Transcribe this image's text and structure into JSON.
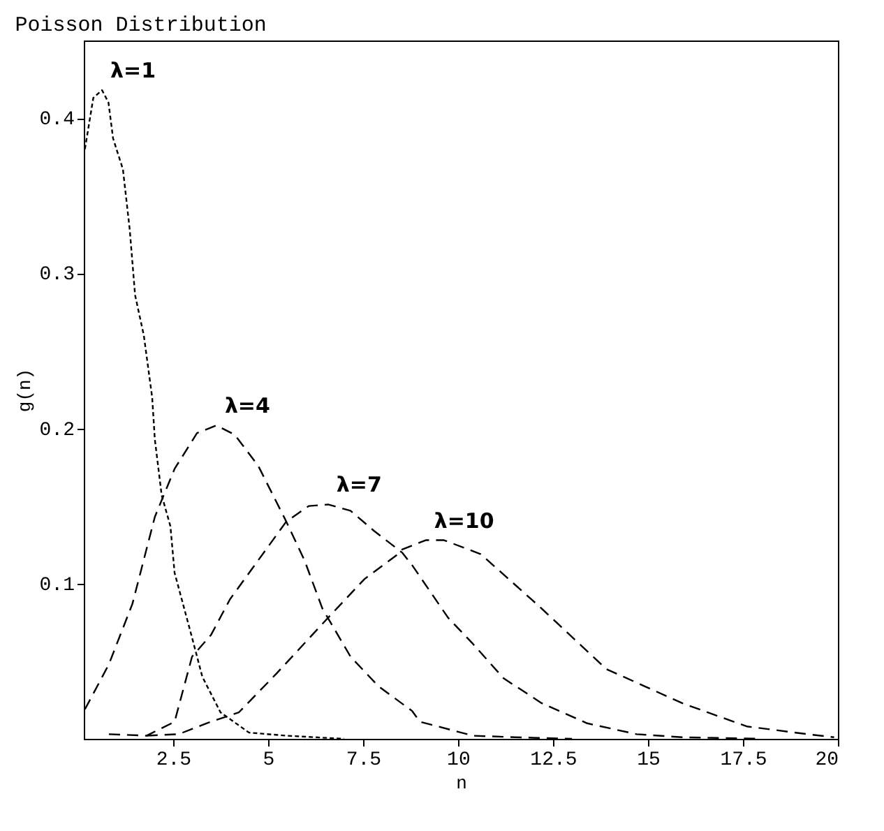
{
  "chart_data": {
    "type": "line",
    "title": "Poisson Distribution",
    "xlabel": "n",
    "ylabel": "g(n)",
    "xlim": [
      0.15,
      20
    ],
    "ylim": [
      0,
      0.45
    ],
    "xticks": [
      2.5,
      5,
      7.5,
      10,
      12.5,
      15,
      17.5,
      20
    ],
    "yticks": [
      0.1,
      0.2,
      0.3,
      0.4
    ],
    "grid": false,
    "legend": false,
    "marker": "none",
    "series": [
      {
        "name": "λ=1",
        "color": "#000000",
        "line_style": "dotted",
        "x": [
          0.18,
          0.4,
          0.63,
          0.8,
          0.92,
          1.18,
          1.36,
          1.5,
          1.73,
          1.95,
          2.02,
          2.2,
          2.43,
          2.54,
          2.98,
          3.27,
          3.75,
          4.5,
          5.5,
          7
        ],
        "values": [
          0.38,
          0.413,
          0.418,
          0.41,
          0.387,
          0.367,
          0.328,
          0.286,
          0.26,
          0.22,
          0.193,
          0.157,
          0.137,
          0.107,
          0.067,
          0.04,
          0.017,
          0.004,
          0.002,
          0
        ]
      },
      {
        "name": "λ=4",
        "color": "#000000",
        "line_style": "dashed",
        "x": [
          0.18,
          0.81,
          1.43,
          2.02,
          2.54,
          3.13,
          3.64,
          4.12,
          4.74,
          5.48,
          5.96,
          6.43,
          7.17,
          7.9,
          8.79,
          9.0,
          10.4,
          11.5,
          13
        ],
        "values": [
          0.019,
          0.048,
          0.087,
          0.143,
          0.174,
          0.197,
          0.202,
          0.196,
          0.176,
          0.14,
          0.115,
          0.084,
          0.053,
          0.034,
          0.018,
          0.011,
          0.002,
          0.001,
          0
        ]
      },
      {
        "name": "λ=7",
        "color": "#000000",
        "line_style": "dashed",
        "x": [
          0.81,
          1.8,
          2.54,
          3.0,
          3.5,
          4.0,
          4.74,
          5.48,
          6.07,
          6.58,
          7.17,
          7.79,
          8.53,
          8.79,
          9.74,
          10.4,
          11.2,
          12.2,
          13.4,
          14.7,
          15.9,
          18
        ],
        "values": [
          0.003,
          0.002,
          0.011,
          0.053,
          0.067,
          0.09,
          0.115,
          0.14,
          0.15,
          0.151,
          0.147,
          0.134,
          0.12,
          0.112,
          0.078,
          0.061,
          0.039,
          0.023,
          0.01,
          0.003,
          0.001,
          0
        ]
      },
      {
        "name": "λ=10",
        "color": "#000000",
        "line_style": "dashed",
        "x": [
          1.8,
          2.65,
          3.38,
          4.23,
          5.22,
          6.58,
          7.54,
          8.42,
          8.53,
          9.15,
          9.63,
          10.6,
          12.2,
          13.9,
          15.9,
          17.6,
          19.2,
          19.9
        ],
        "values": [
          0.002,
          0.003,
          0.01,
          0.017,
          0.042,
          0.078,
          0.103,
          0.119,
          0.122,
          0.128,
          0.128,
          0.119,
          0.084,
          0.045,
          0.023,
          0.008,
          0.003,
          0.001
        ]
      }
    ]
  }
}
